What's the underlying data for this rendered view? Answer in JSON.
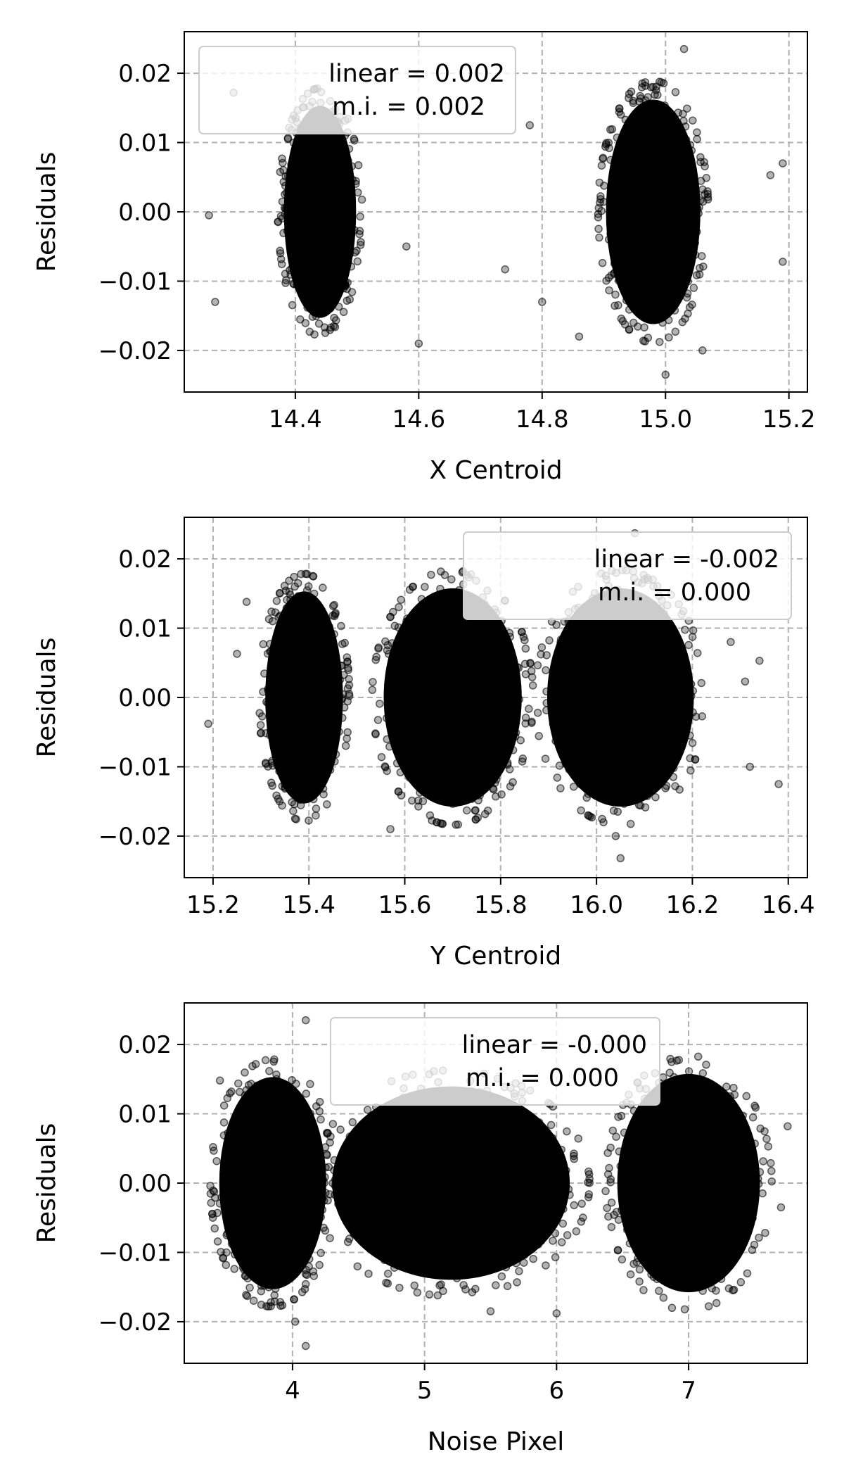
{
  "chart_data": [
    {
      "type": "scatter",
      "xlabel": "X Centroid",
      "ylabel": "Residuals",
      "xlim": [
        14.22,
        15.23
      ],
      "ylim": [
        -0.026,
        0.026
      ],
      "xticks": [
        14.4,
        14.6,
        14.8,
        15.0,
        15.2
      ],
      "xtick_labels": [
        "14.4",
        "14.6",
        "14.8",
        "15.0",
        "15.2"
      ],
      "yticks": [
        0.02,
        0.01,
        0.0,
        -0.01,
        -0.02
      ],
      "ytick_labels": [
        "0.02",
        "0.01",
        "0.00",
        "−0.01",
        "−0.02"
      ],
      "grid": true,
      "legend_position": "upper-left",
      "legend": [
        "linear = 0.002",
        "m.i. = 0.002"
      ],
      "marker_color": "#000000",
      "clusters": [
        {
          "x_center": 14.44,
          "x_halfwidth": 0.065,
          "y_center": 0.0,
          "y_halfwidth": 0.017
        },
        {
          "x_center": 14.98,
          "x_halfwidth": 0.085,
          "y_center": 0.0,
          "y_halfwidth": 0.018
        }
      ],
      "outliers": [
        {
          "x": 14.26,
          "y": -0.0005
        },
        {
          "x": 14.3,
          "y": 0.0172
        },
        {
          "x": 14.27,
          "y": -0.013
        },
        {
          "x": 14.6,
          "y": -0.019
        },
        {
          "x": 14.74,
          "y": -0.0083
        },
        {
          "x": 14.8,
          "y": -0.013
        },
        {
          "x": 14.78,
          "y": 0.0125
        },
        {
          "x": 15.06,
          "y": -0.02
        },
        {
          "x": 15.19,
          "y": 0.007
        },
        {
          "x": 15.19,
          "y": -0.0072
        },
        {
          "x": 15.0,
          "y": -0.0235
        },
        {
          "x": 15.03,
          "y": 0.0235
        },
        {
          "x": 15.17,
          "y": 0.0053
        },
        {
          "x": 14.58,
          "y": -0.005
        },
        {
          "x": 14.86,
          "y": -0.018
        }
      ]
    },
    {
      "type": "scatter",
      "xlabel": "Y Centroid",
      "ylabel": "Residuals",
      "xlim": [
        15.14,
        16.44
      ],
      "ylim": [
        -0.026,
        0.026
      ],
      "xticks": [
        15.2,
        15.4,
        15.6,
        15.8,
        16.0,
        16.2,
        16.4
      ],
      "xtick_labels": [
        "15.2",
        "15.4",
        "15.6",
        "15.8",
        "16.0",
        "16.2",
        "16.4"
      ],
      "yticks": [
        0.02,
        0.01,
        0.0,
        -0.01,
        -0.02
      ],
      "ytick_labels": [
        "0.02",
        "0.01",
        "0.00",
        "−0.01",
        "−0.02"
      ],
      "grid": true,
      "legend_position": "upper-right",
      "legend": [
        "linear = -0.002",
        "m.i. = 0.000"
      ],
      "marker_color": "#000000",
      "clusters": [
        {
          "x_center": 15.39,
          "x_halfwidth": 0.09,
          "y_center": 0.0,
          "y_halfwidth": 0.017
        },
        {
          "x_center": 15.7,
          "x_halfwidth": 0.16,
          "y_center": 0.0,
          "y_halfwidth": 0.0175
        },
        {
          "x_center": 16.05,
          "x_halfwidth": 0.17,
          "y_center": 0.0,
          "y_halfwidth": 0.0175
        }
      ],
      "outliers": [
        {
          "x": 15.19,
          "y": -0.0038
        },
        {
          "x": 15.27,
          "y": 0.0138
        },
        {
          "x": 15.25,
          "y": 0.0063
        },
        {
          "x": 16.31,
          "y": 0.0023
        },
        {
          "x": 16.34,
          "y": 0.0053
        },
        {
          "x": 16.38,
          "y": -0.0125
        },
        {
          "x": 16.32,
          "y": -0.01
        },
        {
          "x": 16.08,
          "y": 0.0237
        },
        {
          "x": 16.05,
          "y": -0.0232
        },
        {
          "x": 16.04,
          "y": -0.02
        },
        {
          "x": 15.57,
          "y": -0.019
        },
        {
          "x": 16.28,
          "y": 0.008
        }
      ]
    },
    {
      "type": "scatter",
      "xlabel": "Noise Pixel",
      "ylabel": "Residuals",
      "xlim": [
        3.18,
        7.9
      ],
      "ylim": [
        -0.026,
        0.026
      ],
      "xticks": [
        4,
        5,
        6,
        7
      ],
      "xtick_labels": [
        "4",
        "5",
        "6",
        "7"
      ],
      "yticks": [
        0.02,
        0.01,
        0.0,
        -0.01,
        -0.02
      ],
      "ytick_labels": [
        "0.02",
        "0.01",
        "0.00",
        "−0.01",
        "−0.02"
      ],
      "grid": true,
      "legend_position": "upper-center",
      "legend": [
        "linear = -0.000",
        "m.i. = 0.000"
      ],
      "marker_color": "#000000",
      "clusters": [
        {
          "x_center": 3.85,
          "x_halfwidth": 0.45,
          "y_center": 0.0,
          "y_halfwidth": 0.017
        },
        {
          "x_center": 5.2,
          "x_halfwidth": 1.0,
          "y_center": 0.0,
          "y_halfwidth": 0.0155
        },
        {
          "x_center": 7.0,
          "x_halfwidth": 0.6,
          "y_center": 0.0,
          "y_halfwidth": 0.0175
        }
      ],
      "outliers": [
        {
          "x": 4.1,
          "y": 0.0235
        },
        {
          "x": 4.1,
          "y": -0.0235
        },
        {
          "x": 4.02,
          "y": -0.02
        },
        {
          "x": 7.75,
          "y": 0.0082
        },
        {
          "x": 7.7,
          "y": -0.0035
        },
        {
          "x": 5.5,
          "y": -0.0185
        },
        {
          "x": 6.0,
          "y": -0.0188
        },
        {
          "x": 3.45,
          "y": 0.0148
        },
        {
          "x": 3.5,
          "y": -0.01
        }
      ]
    }
  ]
}
